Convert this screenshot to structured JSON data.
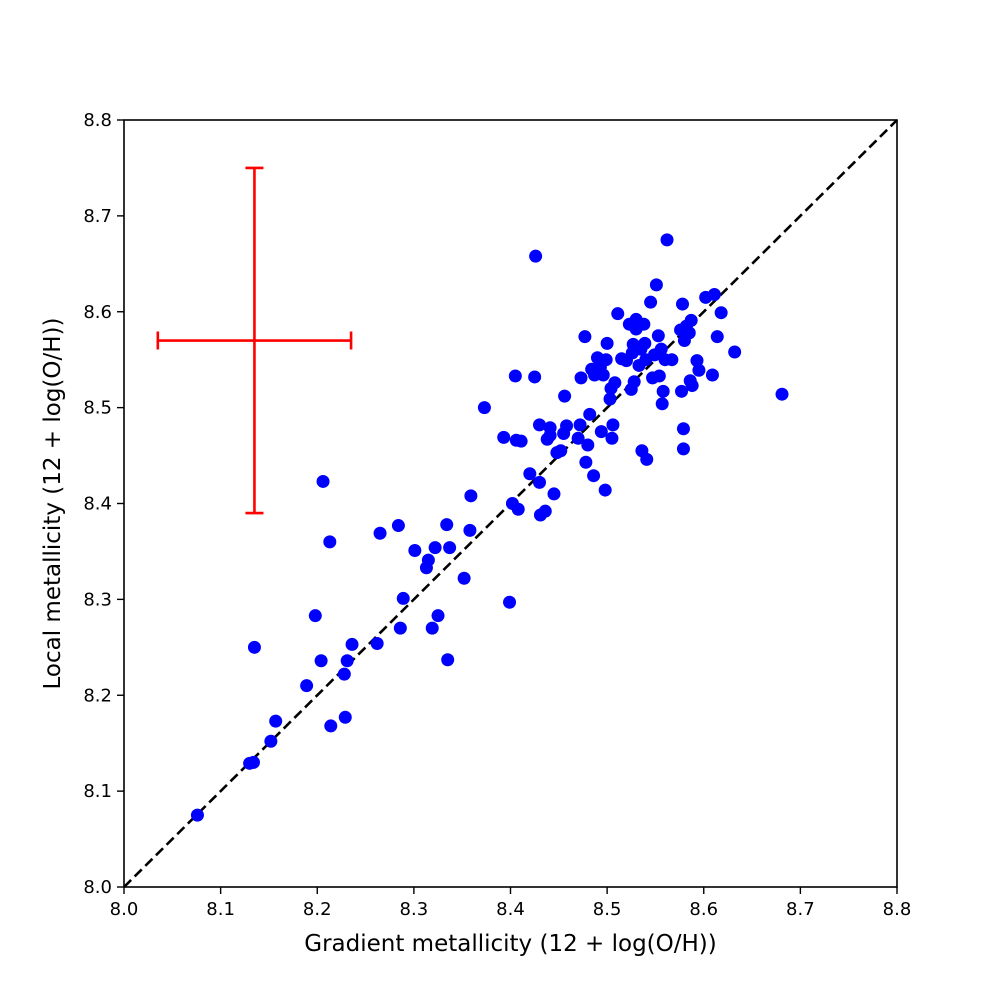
{
  "chart_data": {
    "type": "scatter",
    "xlabel": "Gradient metallicity (12 + log(O/H))",
    "ylabel": "Local metallicity (12 + log(O/H))",
    "xlim": [
      8.0,
      8.8
    ],
    "ylim": [
      8.0,
      8.8
    ],
    "xticks": [
      "8.0",
      "8.1",
      "8.2",
      "8.3",
      "8.4",
      "8.5",
      "8.6",
      "8.7",
      "8.8"
    ],
    "yticks": [
      "8.0",
      "8.1",
      "8.2",
      "8.3",
      "8.4",
      "8.5",
      "8.6",
      "8.7",
      "8.8"
    ],
    "grid": false,
    "point_color": "#0000ff",
    "reference_line": {
      "style": "dashed",
      "color": "#000000",
      "from": [
        8.0,
        8.0
      ],
      "to": [
        8.8,
        8.8
      ]
    },
    "error_bar": {
      "color": "#ff0000",
      "x": 8.135,
      "y": 8.57,
      "xerr": [
        8.035,
        8.235
      ],
      "yerr": [
        8.39,
        8.75
      ]
    },
    "points": [
      [
        8.076,
        8.075
      ],
      [
        8.13,
        8.129
      ],
      [
        8.134,
        8.13
      ],
      [
        8.135,
        8.25
      ],
      [
        8.152,
        8.152
      ],
      [
        8.157,
        8.173
      ],
      [
        8.189,
        8.21
      ],
      [
        8.198,
        8.283
      ],
      [
        8.204,
        8.236
      ],
      [
        8.206,
        8.423
      ],
      [
        8.213,
        8.36
      ],
      [
        8.214,
        8.168
      ],
      [
        8.228,
        8.222
      ],
      [
        8.229,
        8.177
      ],
      [
        8.231,
        8.236
      ],
      [
        8.236,
        8.253
      ],
      [
        8.262,
        8.254
      ],
      [
        8.265,
        8.369
      ],
      [
        8.284,
        8.377
      ],
      [
        8.286,
        8.27
      ],
      [
        8.289,
        8.301
      ],
      [
        8.301,
        8.351
      ],
      [
        8.313,
        8.333
      ],
      [
        8.315,
        8.341
      ],
      [
        8.319,
        8.27
      ],
      [
        8.322,
        8.354
      ],
      [
        8.325,
        8.283
      ],
      [
        8.334,
        8.378
      ],
      [
        8.335,
        8.237
      ],
      [
        8.337,
        8.354
      ],
      [
        8.352,
        8.322
      ],
      [
        8.358,
        8.372
      ],
      [
        8.359,
        8.408
      ],
      [
        8.373,
        8.5
      ],
      [
        8.393,
        8.469
      ],
      [
        8.399,
        8.297
      ],
      [
        8.402,
        8.4
      ],
      [
        8.405,
        8.533
      ],
      [
        8.406,
        8.466
      ],
      [
        8.408,
        8.394
      ],
      [
        8.411,
        8.465
      ],
      [
        8.42,
        8.431
      ],
      [
        8.425,
        8.532
      ],
      [
        8.426,
        8.658
      ],
      [
        8.43,
        8.482
      ],
      [
        8.43,
        8.422
      ],
      [
        8.431,
        8.388
      ],
      [
        8.436,
        8.392
      ],
      [
        8.438,
        8.467
      ],
      [
        8.441,
        8.479
      ],
      [
        8.441,
        8.471
      ],
      [
        8.445,
        8.41
      ],
      [
        8.448,
        8.453
      ],
      [
        8.452,
        8.455
      ],
      [
        8.455,
        8.473
      ],
      [
        8.456,
        8.512
      ],
      [
        8.458,
        8.481
      ],
      [
        8.47,
        8.468
      ],
      [
        8.472,
        8.482
      ],
      [
        8.473,
        8.531
      ],
      [
        8.477,
        8.574
      ],
      [
        8.478,
        8.443
      ],
      [
        8.48,
        8.461
      ],
      [
        8.482,
        8.493
      ],
      [
        8.484,
        8.54
      ],
      [
        8.486,
        8.429
      ],
      [
        8.487,
        8.534
      ],
      [
        8.49,
        8.552
      ],
      [
        8.493,
        8.542
      ],
      [
        8.494,
        8.475
      ],
      [
        8.496,
        8.534
      ],
      [
        8.498,
        8.414
      ],
      [
        8.499,
        8.55
      ],
      [
        8.5,
        8.567
      ],
      [
        8.503,
        8.509
      ],
      [
        8.504,
        8.52
      ],
      [
        8.505,
        8.468
      ],
      [
        8.506,
        8.482
      ],
      [
        8.508,
        8.526
      ],
      [
        8.511,
        8.598
      ],
      [
        8.515,
        8.551
      ],
      [
        8.52,
        8.549
      ],
      [
        8.523,
        8.587
      ],
      [
        8.525,
        8.519
      ],
      [
        8.526,
        8.557
      ],
      [
        8.527,
        8.566
      ],
      [
        8.528,
        8.527
      ],
      [
        8.53,
        8.582
      ],
      [
        8.53,
        8.592
      ],
      [
        8.533,
        8.544
      ],
      [
        8.535,
        8.561
      ],
      [
        8.536,
        8.455
      ],
      [
        8.538,
        8.587
      ],
      [
        8.539,
        8.567
      ],
      [
        8.54,
        8.55
      ],
      [
        8.541,
        8.446
      ],
      [
        8.545,
        8.61
      ],
      [
        8.547,
        8.531
      ],
      [
        8.549,
        8.555
      ],
      [
        8.551,
        8.628
      ],
      [
        8.553,
        8.575
      ],
      [
        8.554,
        8.533
      ],
      [
        8.556,
        8.561
      ],
      [
        8.557,
        8.504
      ],
      [
        8.558,
        8.517
      ],
      [
        8.56,
        8.55
      ],
      [
        8.562,
        8.675
      ],
      [
        8.567,
        8.55
      ],
      [
        8.576,
        8.581
      ],
      [
        8.577,
        8.517
      ],
      [
        8.578,
        8.608
      ],
      [
        8.579,
        8.478
      ],
      [
        8.579,
        8.457
      ],
      [
        8.58,
        8.57
      ],
      [
        8.582,
        8.585
      ],
      [
        8.585,
        8.578
      ],
      [
        8.586,
        8.528
      ],
      [
        8.587,
        8.591
      ],
      [
        8.588,
        8.523
      ],
      [
        8.593,
        8.549
      ],
      [
        8.595,
        8.539
      ],
      [
        8.602,
        8.615
      ],
      [
        8.609,
        8.534
      ],
      [
        8.611,
        8.618
      ],
      [
        8.614,
        8.574
      ],
      [
        8.618,
        8.599
      ],
      [
        8.632,
        8.558
      ],
      [
        8.681,
        8.514
      ]
    ]
  }
}
